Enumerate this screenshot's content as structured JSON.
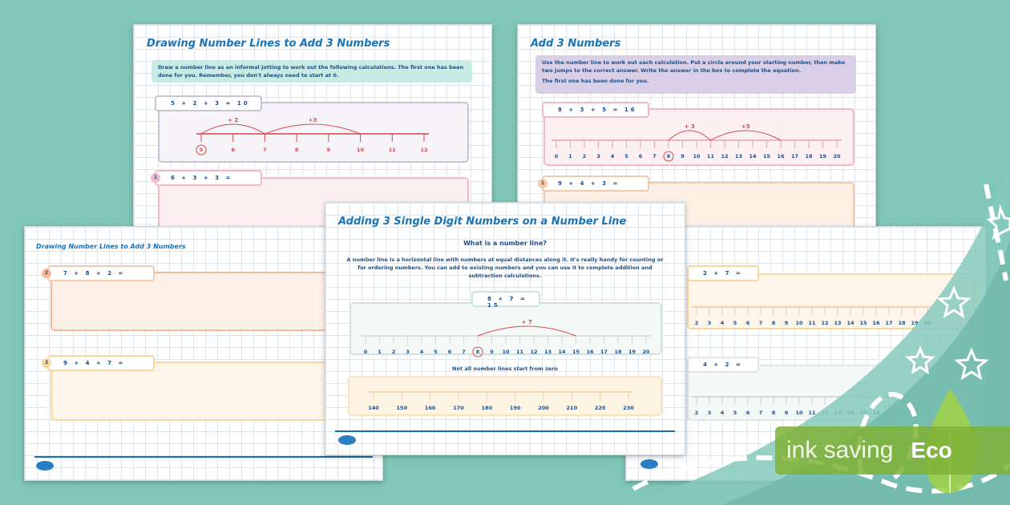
{
  "colors": {
    "background": "#80c6b9",
    "title": "#1a74b8",
    "red": "#d9464a",
    "eco_green": "#7fb236"
  },
  "sheet_a": {
    "title": "Drawing Number Lines to Add 3 Numbers",
    "instructions": "Draw a number line as an informal jotting to work out the following calculations. The first one has been done for you. Remember, you don't always need to start at 0.",
    "example": {
      "equation": "5 + 2 + 3 = 10",
      "line": {
        "start": 5,
        "end": 12,
        "step": 1,
        "circled": 5,
        "jumps": [
          {
            "from": 5,
            "to": 7,
            "label": "+ 2"
          },
          {
            "from": 7,
            "to": 10,
            "label": "+3"
          }
        ]
      }
    },
    "questions": [
      {
        "number": "1",
        "equation": "6 + 3 + 3 ="
      }
    ]
  },
  "sheet_b": {
    "title": "Add 3 Numbers",
    "instructions": "Use the number line to work out each calculation. Put a circle around your starting number, then make two jumps to the correct answer. Write the answer in the box to complete the equation.",
    "instructions2": "The first one has been done for you.",
    "example": {
      "equation": "8 + 3 + 5 = 16",
      "line": {
        "start": 0,
        "end": 20,
        "step": 1,
        "circled": 8,
        "jumps": [
          {
            "from": 8,
            "to": 11,
            "label": "+ 3"
          },
          {
            "from": 11,
            "to": 16,
            "label": "+5"
          }
        ]
      }
    },
    "questions": [
      {
        "number": "1",
        "equation": "9 + 4 + 3 ="
      }
    ]
  },
  "sheet_c": {
    "title": "Drawing Number Lines to Add 3 Numbers",
    "questions": [
      {
        "number": "2",
        "equation": "7 + 8 + 2 ="
      },
      {
        "number": "3",
        "equation": "9 + 4 + 7 ="
      }
    ]
  },
  "sheet_d": {
    "title": "Adding 3 Single Digit Numbers on a Number Line",
    "subtitle": "What is a number line?",
    "body": "A number line is a horizontal line with numbers at equal distances along it. It's really handy for counting or for ordering numbers. You can add to existing numbers and you can use it to complete addition and subtraction calculations.",
    "example": {
      "equation": "8 + 7 = 15",
      "line": {
        "start": 0,
        "end": 20,
        "step": 1,
        "circled": 8,
        "jumps": [
          {
            "from": 8,
            "to": 15,
            "label": "+ 7"
          }
        ]
      }
    },
    "subtitle2": "Not all number lines start from zero",
    "line2": {
      "start": 140,
      "end": 230,
      "step": 10
    }
  },
  "sheet_e": {
    "questions": [
      {
        "equation": "2 + 7 =",
        "line": {
          "start": 2,
          "end": 20,
          "step": 1
        }
      },
      {
        "equation": "4 + 2 =",
        "line": {
          "start": 2,
          "end": 20,
          "step": 1
        }
      }
    ]
  },
  "badge": {
    "label": "ink saving",
    "eco": "Eco"
  }
}
